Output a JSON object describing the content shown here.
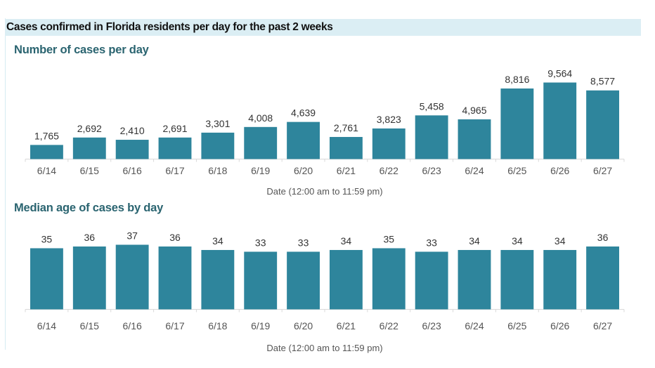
{
  "header": {
    "title": "Cases confirmed in Florida residents per day for the past 2 weeks"
  },
  "colors": {
    "bar": "#2e859c",
    "banner": "#dbeef4",
    "subtitle": "#2a6470"
  },
  "chart_data": [
    {
      "type": "bar",
      "title": "Number of cases per day",
      "xlabel": "Date (12:00 am to 11:59 pm)",
      "ylabel": "",
      "categories": [
        "6/14",
        "6/15",
        "6/16",
        "6/17",
        "6/18",
        "6/19",
        "6/20",
        "6/21",
        "6/22",
        "6/23",
        "6/24",
        "6/25",
        "6/26",
        "6/27"
      ],
      "values": [
        1765,
        2692,
        2410,
        2691,
        3301,
        4008,
        4639,
        2761,
        3823,
        5458,
        4965,
        8816,
        9564,
        8577
      ],
      "value_labels": [
        "1,765",
        "2,692",
        "2,410",
        "2,691",
        "3,301",
        "4,008",
        "4,639",
        "2,761",
        "3,823",
        "5,458",
        "4,965",
        "8,816",
        "9,564",
        "8,577"
      ],
      "ylim": [
        0,
        9564
      ],
      "grid": false,
      "legend": "none"
    },
    {
      "type": "bar",
      "title": "Median age of cases by day",
      "xlabel": "Date (12:00 am to 11:59 pm)",
      "ylabel": "",
      "categories": [
        "6/14",
        "6/15",
        "6/16",
        "6/17",
        "6/18",
        "6/19",
        "6/20",
        "6/21",
        "6/22",
        "6/23",
        "6/24",
        "6/25",
        "6/26",
        "6/27"
      ],
      "values": [
        35,
        36,
        37,
        36,
        34,
        33,
        33,
        34,
        35,
        33,
        34,
        34,
        34,
        36
      ],
      "value_labels": [
        "35",
        "36",
        "37",
        "36",
        "34",
        "33",
        "33",
        "34",
        "35",
        "33",
        "34",
        "34",
        "34",
        "36"
      ],
      "ylim": [
        0,
        37
      ],
      "grid": false,
      "legend": "none"
    }
  ]
}
